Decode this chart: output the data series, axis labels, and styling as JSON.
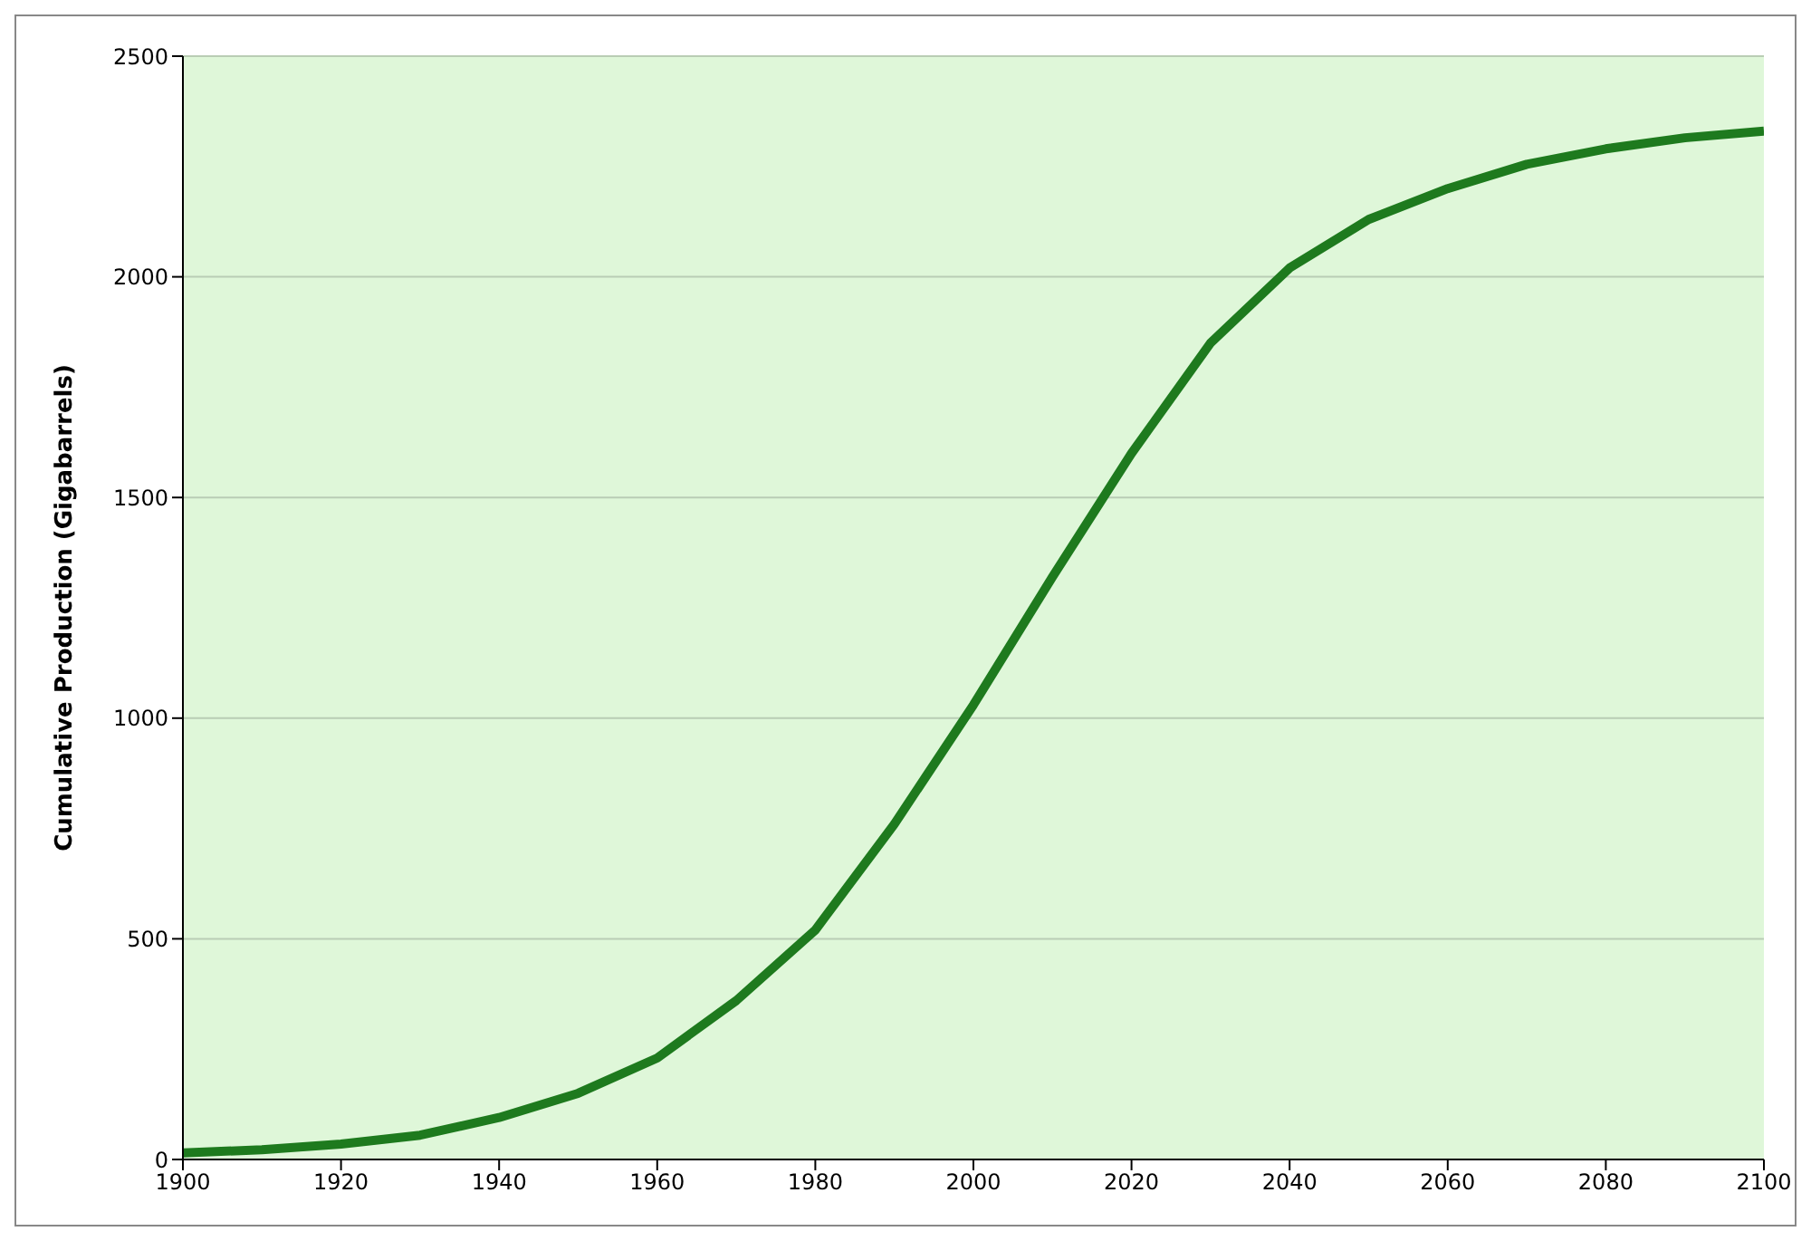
{
  "chart_data": {
    "type": "line",
    "ylabel": "Cumulative Production (Gigabarrels)",
    "x": [
      1900,
      1910,
      1920,
      1930,
      1940,
      1950,
      1960,
      1970,
      1980,
      1990,
      2000,
      2010,
      2020,
      2030,
      2040,
      2050,
      2060,
      2070,
      2080,
      2090,
      2100
    ],
    "series": [
      {
        "color": "#1e7a1e",
        "values": [
          15,
          22,
          35,
          55,
          95,
          150,
          230,
          360,
          520,
          760,
          1030,
          1320,
          1600,
          1850,
          2020,
          2130,
          2200,
          2255,
          2290,
          2315,
          2330
        ]
      }
    ],
    "xlim": [
      1900,
      2100
    ],
    "xticks": [
      1900,
      1920,
      1940,
      1960,
      1980,
      2000,
      2020,
      2040,
      2060,
      2080,
      2100
    ],
    "ylim": [
      0,
      2500
    ],
    "yticks": [
      0,
      500,
      1000,
      1500,
      2000,
      2500
    ],
    "grid": "y",
    "marker": "none",
    "line_style": "solid",
    "legend": false
  }
}
